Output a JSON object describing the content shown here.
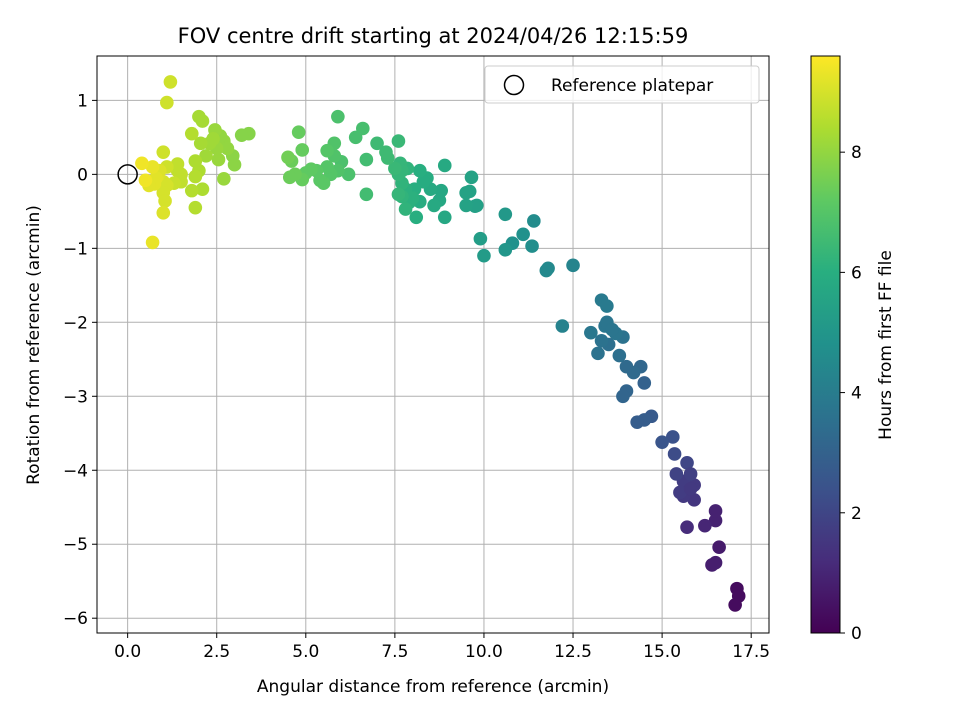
{
  "chart_data": {
    "type": "scatter",
    "title": "FOV centre drift starting at 2024/04/26 12:15:59",
    "xlabel": "Angular distance from reference (arcmin)",
    "ylabel": "Rotation from reference (arcmin)",
    "xlim": [
      -0.86,
      18.0
    ],
    "ylim": [
      -6.2,
      1.6
    ],
    "xticks": [
      0.0,
      2.5,
      5.0,
      7.5,
      10.0,
      12.5,
      15.0,
      17.5
    ],
    "xtick_labels": [
      "0.0",
      "2.5",
      "5.0",
      "7.5",
      "10.0",
      "12.5",
      "15.0",
      "17.5"
    ],
    "yticks": [
      1,
      0,
      -1,
      -2,
      -3,
      -4,
      -5,
      -6
    ],
    "ytick_labels": [
      "1",
      "0",
      "−1",
      "−2",
      "−3",
      "−4",
      "−5",
      "−6"
    ],
    "grid": true,
    "legend": {
      "position": "top-right",
      "entries": [
        "Reference platepar"
      ]
    },
    "reference_point": {
      "x": 0.0,
      "y": 0.0,
      "label": "Reference platepar"
    },
    "colorbar": {
      "label": "Hours from first FF file",
      "colormap": "viridis",
      "range": [
        0,
        9.6
      ],
      "ticks": [
        0,
        2,
        4,
        6,
        8
      ],
      "tick_labels": [
        "0",
        "2",
        "4",
        "6",
        "8"
      ]
    },
    "points": [
      [
        17.1,
        -5.6,
        0.3
      ],
      [
        17.15,
        -5.7,
        0.3
      ],
      [
        17.05,
        -5.82,
        0.3
      ],
      [
        16.6,
        -5.04,
        0.7
      ],
      [
        16.4,
        -5.28,
        0.8
      ],
      [
        16.5,
        -5.25,
        0.8
      ],
      [
        16.5,
        -4.68,
        0.9
      ],
      [
        16.5,
        -4.55,
        0.9
      ],
      [
        16.2,
        -4.75,
        1.0
      ],
      [
        15.7,
        -4.77,
        1.2
      ],
      [
        15.9,
        -4.4,
        1.5
      ],
      [
        15.6,
        -4.35,
        1.6
      ],
      [
        15.9,
        -4.2,
        1.6
      ],
      [
        15.6,
        -4.15,
        1.7
      ],
      [
        15.5,
        -4.3,
        1.7
      ],
      [
        15.8,
        -4.25,
        1.6
      ],
      [
        15.4,
        -4.05,
        1.9
      ],
      [
        15.7,
        -3.9,
        2.0
      ],
      [
        15.8,
        -4.05,
        1.8
      ],
      [
        15.35,
        -3.78,
        2.2
      ],
      [
        15.3,
        -3.55,
        2.4
      ],
      [
        15.0,
        -3.62,
        2.5
      ],
      [
        14.7,
        -3.27,
        2.7
      ],
      [
        14.5,
        -3.32,
        2.8
      ],
      [
        14.3,
        -3.35,
        2.8
      ],
      [
        14.5,
        -2.82,
        3.0
      ],
      [
        14.0,
        -2.93,
        3.1
      ],
      [
        13.9,
        -3.0,
        3.1
      ],
      [
        14.4,
        -2.6,
        3.2
      ],
      [
        14.2,
        -2.68,
        3.3
      ],
      [
        14.0,
        -2.6,
        3.3
      ],
      [
        13.8,
        -2.45,
        3.5
      ],
      [
        13.9,
        -2.2,
        3.6
      ],
      [
        13.2,
        -2.42,
        3.6
      ],
      [
        13.5,
        -2.3,
        3.5
      ],
      [
        13.3,
        -2.25,
        3.6
      ],
      [
        13.7,
        -2.15,
        3.7
      ],
      [
        13.0,
        -2.14,
        3.8
      ],
      [
        13.4,
        -2.05,
        3.7
      ],
      [
        13.45,
        -2.0,
        3.7
      ],
      [
        13.6,
        -2.1,
        3.7
      ],
      [
        13.3,
        -1.7,
        3.9
      ],
      [
        13.45,
        -1.78,
        3.9
      ],
      [
        12.2,
        -2.05,
        4.2
      ],
      [
        12.5,
        -1.23,
        4.3
      ],
      [
        11.8,
        -1.27,
        4.5
      ],
      [
        11.75,
        -1.3,
        4.5
      ],
      [
        11.4,
        -0.63,
        4.6
      ],
      [
        11.35,
        -0.97,
        4.7
      ],
      [
        11.1,
        -0.81,
        4.8
      ],
      [
        10.8,
        -0.93,
        4.8
      ],
      [
        10.6,
        -1.02,
        5.0
      ],
      [
        10.6,
        -0.54,
        5.1
      ],
      [
        10.0,
        -1.1,
        5.2
      ],
      [
        9.9,
        -0.87,
        5.3
      ],
      [
        9.8,
        -0.42,
        5.4
      ],
      [
        9.75,
        -0.43,
        5.4
      ],
      [
        9.5,
        -0.42,
        5.5
      ],
      [
        9.6,
        -0.23,
        5.5
      ],
      [
        9.5,
        -0.25,
        5.5
      ],
      [
        9.65,
        -0.04,
        5.5
      ],
      [
        8.9,
        -0.58,
        5.7
      ],
      [
        8.8,
        -0.22,
        5.7
      ],
      [
        8.75,
        -0.35,
        5.7
      ],
      [
        8.9,
        0.12,
        5.8
      ],
      [
        8.6,
        -0.42,
        5.8
      ],
      [
        8.5,
        -0.2,
        5.8
      ],
      [
        8.4,
        -0.05,
        5.9
      ],
      [
        8.3,
        -0.1,
        5.9
      ],
      [
        8.2,
        -0.37,
        5.9
      ],
      [
        8.1,
        -0.58,
        6.0
      ],
      [
        8.2,
        0.05,
        6.0
      ],
      [
        8.05,
        -0.2,
        6.0
      ],
      [
        8.0,
        -0.32,
        6.1
      ],
      [
        7.9,
        -0.38,
        6.1
      ],
      [
        7.8,
        -0.2,
        6.1
      ],
      [
        7.7,
        -0.3,
        6.2
      ],
      [
        7.8,
        -0.47,
        6.2
      ],
      [
        7.7,
        -0.12,
        6.2
      ],
      [
        7.85,
        0.08,
        6.2
      ],
      [
        7.6,
        0.0,
        6.3
      ],
      [
        7.65,
        0.15,
        6.3
      ],
      [
        7.7,
        0.05,
        6.3
      ],
      [
        7.6,
        -0.27,
        6.3
      ],
      [
        7.5,
        0.08,
        6.4
      ],
      [
        7.6,
        0.45,
        6.4
      ],
      [
        7.3,
        0.22,
        6.5
      ],
      [
        7.25,
        0.3,
        6.5
      ],
      [
        7.0,
        0.42,
        6.5
      ],
      [
        6.7,
        0.2,
        6.6
      ],
      [
        6.7,
        -0.27,
        6.6
      ],
      [
        6.6,
        0.62,
        6.7
      ],
      [
        6.4,
        0.5,
        6.7
      ],
      [
        6.2,
        0.0,
        6.8
      ],
      [
        5.9,
        0.78,
        6.8
      ],
      [
        6.0,
        0.17,
        6.8
      ],
      [
        5.9,
        0.05,
        6.9
      ],
      [
        5.8,
        0.42,
        6.9
      ],
      [
        5.8,
        0.25,
        6.9
      ],
      [
        5.7,
        0.0,
        7.0
      ],
      [
        5.6,
        0.32,
        7.0
      ],
      [
        5.6,
        0.1,
        7.0
      ],
      [
        5.5,
        -0.12,
        7.1
      ],
      [
        5.4,
        -0.08,
        7.1
      ],
      [
        5.3,
        0.05,
        7.1
      ],
      [
        5.15,
        0.07,
        7.2
      ],
      [
        5.0,
        0.02,
        7.2
      ],
      [
        4.9,
        -0.07,
        7.3
      ],
      [
        4.9,
        0.33,
        7.3
      ],
      [
        4.8,
        0.57,
        7.3
      ],
      [
        4.7,
        0.0,
        7.4
      ],
      [
        4.6,
        0.18,
        7.4
      ],
      [
        4.55,
        -0.04,
        7.4
      ],
      [
        4.5,
        0.23,
        7.5
      ],
      [
        3.4,
        0.55,
        7.8
      ],
      [
        3.2,
        0.53,
        7.8
      ],
      [
        3.0,
        0.13,
        7.9
      ],
      [
        2.95,
        0.25,
        7.9
      ],
      [
        2.7,
        0.45,
        8.0
      ],
      [
        2.8,
        0.35,
        8.0
      ],
      [
        2.6,
        0.52,
        8.0
      ],
      [
        2.7,
        -0.06,
        8.1
      ],
      [
        2.55,
        0.2,
        8.1
      ],
      [
        2.5,
        0.35,
        8.1
      ],
      [
        2.45,
        0.6,
        8.1
      ],
      [
        2.4,
        0.48,
        8.2
      ],
      [
        2.3,
        0.42,
        8.2
      ],
      [
        2.2,
        0.25,
        8.2
      ],
      [
        2.1,
        0.72,
        8.3
      ],
      [
        2.0,
        0.78,
        8.3
      ],
      [
        2.05,
        0.42,
        8.3
      ],
      [
        2.0,
        0.05,
        8.4
      ],
      [
        2.1,
        -0.2,
        8.4
      ],
      [
        1.9,
        0.18,
        8.4
      ],
      [
        1.9,
        -0.03,
        8.5
      ],
      [
        1.8,
        -0.22,
        8.5
      ],
      [
        1.9,
        -0.45,
        8.5
      ],
      [
        1.8,
        0.55,
        8.5
      ],
      [
        1.5,
        0.0,
        8.7
      ],
      [
        1.4,
        0.05,
        8.7
      ],
      [
        1.5,
        -0.1,
        8.7
      ],
      [
        1.4,
        0.14,
        8.7
      ],
      [
        1.3,
        -0.12,
        8.8
      ],
      [
        1.2,
        1.25,
        8.9
      ],
      [
        1.1,
        0.97,
        8.9
      ],
      [
        1.0,
        0.3,
        8.9
      ],
      [
        1.1,
        0.1,
        8.9
      ],
      [
        1.0,
        -0.1,
        9.0
      ],
      [
        1.1,
        -0.15,
        9.0
      ],
      [
        1.0,
        -0.25,
        9.0
      ],
      [
        1.05,
        -0.36,
        9.0
      ],
      [
        1.0,
        -0.52,
        9.1
      ],
      [
        0.9,
        0.05,
        9.1
      ],
      [
        0.85,
        -0.02,
        9.1
      ],
      [
        0.8,
        -0.05,
        9.2
      ],
      [
        0.75,
        -0.13,
        9.2
      ],
      [
        0.6,
        -0.15,
        9.2
      ],
      [
        0.7,
        0.1,
        9.3
      ],
      [
        0.7,
        -0.92,
        9.3
      ],
      [
        0.4,
        0.15,
        9.4
      ],
      [
        0.5,
        -0.08,
        9.4
      ]
    ]
  }
}
